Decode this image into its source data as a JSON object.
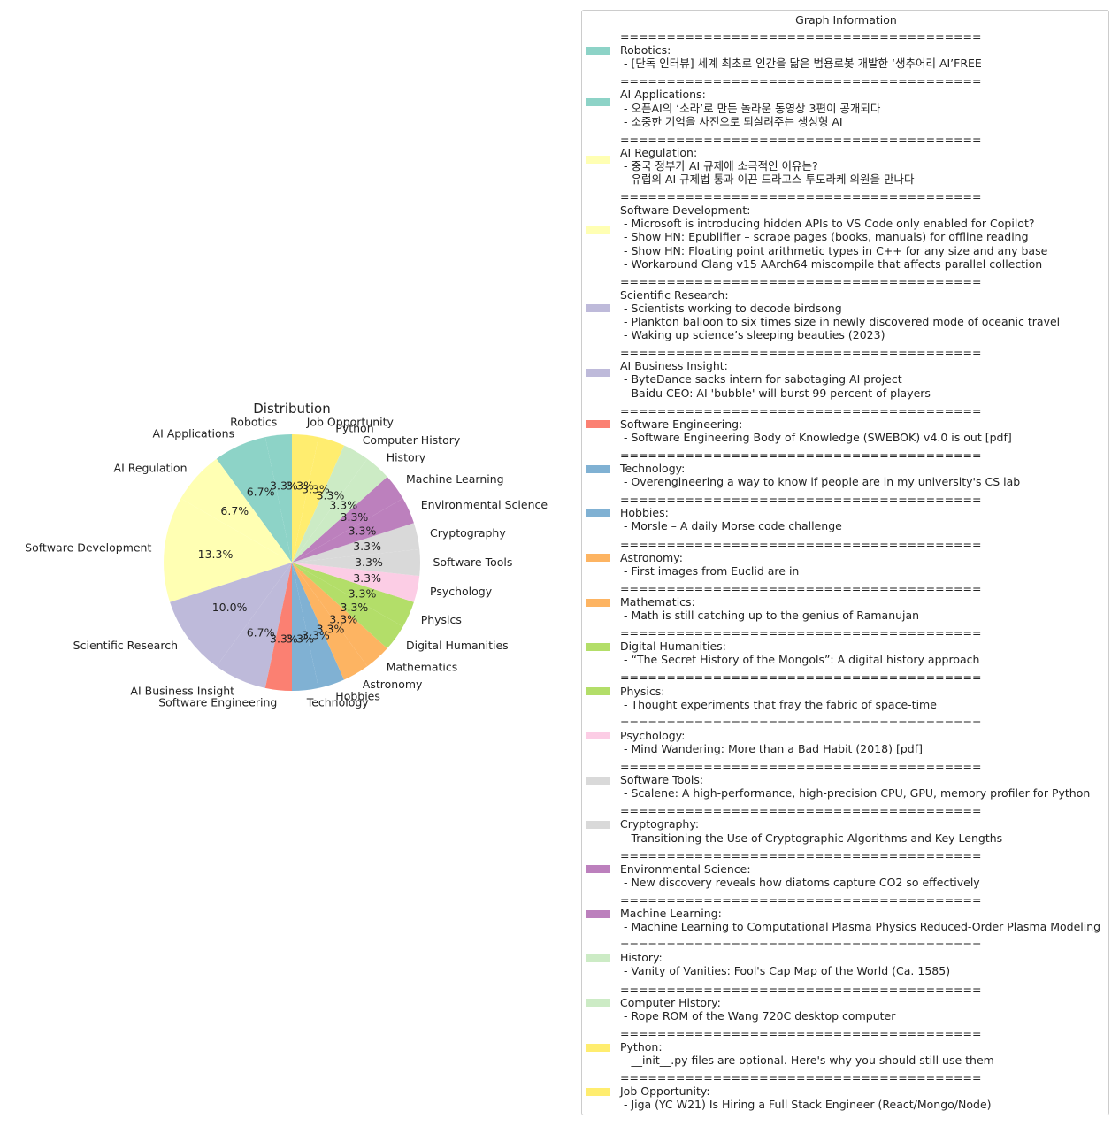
{
  "chart_data": {
    "type": "pie",
    "title": "Distribution",
    "categories": [
      "Robotics",
      "AI Applications",
      "AI Regulation",
      "Software Development",
      "Scientific Research",
      "AI Business Insight",
      "Software Engineering",
      "Technology",
      "Hobbies",
      "Astronomy",
      "Mathematics",
      "Digital Humanities",
      "Physics",
      "Psychology",
      "Software Tools",
      "Cryptography",
      "Environmental Science",
      "Machine Learning",
      "History",
      "Computer History",
      "Python",
      "Job Opportunity"
    ],
    "values": [
      1,
      2,
      2,
      4,
      3,
      2,
      1,
      1,
      1,
      1,
      1,
      1,
      1,
      1,
      1,
      1,
      1,
      1,
      1,
      1,
      1,
      1
    ],
    "percent_labels": [
      "3.3%",
      "6.7%",
      "6.7%",
      "13.3%",
      "10.0%",
      "6.7%",
      "3.3%",
      "3.3%",
      "3.3%",
      "3.3%",
      "3.3%",
      "3.3%",
      "3.3%",
      "3.3%",
      "3.3%",
      "3.3%",
      "3.3%",
      "3.3%",
      "3.3%",
      "3.3%",
      "3.3%",
      "3.3%"
    ],
    "colors": [
      "#8dd3c7",
      "#8dd3c7",
      "#ffffb3",
      "#ffffb3",
      "#bebada",
      "#bebada",
      "#fb8072",
      "#80b1d3",
      "#80b1d3",
      "#fdb462",
      "#fdb462",
      "#b3de69",
      "#b3de69",
      "#fccde5",
      "#d9d9d9",
      "#d9d9d9",
      "#bc80bd",
      "#bc80bd",
      "#ccebc5",
      "#ccebc5",
      "#ffed6f",
      "#ffed6f"
    ],
    "start_angle_deg": 90,
    "direction": "counterclockwise"
  },
  "legend": {
    "title": "Graph Information",
    "separator": "=======================================",
    "entries": [
      {
        "category": "Robotics:",
        "color": "#8dd3c7",
        "items": [
          "[단독 인터뷰] 세계 최초로 인간을 닮은 범용로봇 개발한 ‘생추어리 AI’FREE"
        ]
      },
      {
        "category": "AI Applications:",
        "color": "#8dd3c7",
        "items": [
          "오픈AI의 ‘소라’로 만든 놀라운 동영상 3편이 공개되다",
          "소중한 기억을 사진으로 되살려주는 생성형 AI"
        ]
      },
      {
        "category": "AI Regulation:",
        "color": "#ffffb3",
        "items": [
          "중국 정부가 AI 규제에 소극적인 이유는?",
          "유럽의 AI 규제법 통과 이끈 드라고스 투도라케 의원을 만나다"
        ]
      },
      {
        "category": "Software Development:",
        "color": "#ffffb3",
        "items": [
          "Microsoft is introducing hidden APIs to VS Code only enabled for Copilot?",
          "Show HN: Epublifier – scrape pages (books, manuals) for offline reading",
          "Show HN: Floating point arithmetic types in C++ for any size and any base",
          "Workaround Clang v15 AArch64 miscompile that affects parallel collection"
        ]
      },
      {
        "category": "Scientific Research:",
        "color": "#bebada",
        "items": [
          "Scientists working to decode birdsong",
          "Plankton balloon to six times size in newly discovered mode of oceanic travel",
          "Waking up science’s sleeping beauties (2023)"
        ]
      },
      {
        "category": "AI Business Insight:",
        "color": "#bebada",
        "items": [
          "ByteDance sacks intern for sabotaging AI project",
          "Baidu CEO: AI 'bubble' will burst 99 percent of players"
        ]
      },
      {
        "category": "Software Engineering:",
        "color": "#fb8072",
        "items": [
          "Software Engineering Body of Knowledge (SWEBOK) v4.0 is out [pdf]"
        ]
      },
      {
        "category": "Technology:",
        "color": "#80b1d3",
        "items": [
          "Overengineering a way to know if people are in my university's CS lab"
        ]
      },
      {
        "category": "Hobbies:",
        "color": "#80b1d3",
        "items": [
          "Morsle – A daily Morse code challenge"
        ]
      },
      {
        "category": "Astronomy:",
        "color": "#fdb462",
        "items": [
          "First images from Euclid are in"
        ]
      },
      {
        "category": "Mathematics:",
        "color": "#fdb462",
        "items": [
          "Math is still catching up to the genius of Ramanujan"
        ]
      },
      {
        "category": "Digital Humanities:",
        "color": "#b3de69",
        "items": [
          "“The Secret History of the Mongols”: A digital history approach"
        ]
      },
      {
        "category": "Physics:",
        "color": "#b3de69",
        "items": [
          "Thought experiments that fray the fabric of space-time"
        ]
      },
      {
        "category": "Psychology:",
        "color": "#fccde5",
        "items": [
          "Mind Wandering: More than a Bad Habit (2018) [pdf]"
        ]
      },
      {
        "category": "Software Tools:",
        "color": "#d9d9d9",
        "items": [
          "Scalene: A high-performance, high-precision CPU, GPU, memory profiler for Python"
        ]
      },
      {
        "category": "Cryptography:",
        "color": "#d9d9d9",
        "items": [
          "Transitioning the Use of Cryptographic Algorithms and Key Lengths"
        ]
      },
      {
        "category": "Environmental Science:",
        "color": "#bc80bd",
        "items": [
          "New discovery reveals how diatoms capture CO2 so effectively"
        ]
      },
      {
        "category": "Machine Learning:",
        "color": "#bc80bd",
        "items": [
          "Machine Learning to Computational Plasma Physics Reduced-Order Plasma Modeling"
        ]
      },
      {
        "category": "History:",
        "color": "#ccebc5",
        "items": [
          "Vanity of Vanities: Fool's Cap Map of the World (Ca. 1585)"
        ]
      },
      {
        "category": "Computer History:",
        "color": "#ccebc5",
        "items": [
          "Rope ROM of the Wang 720C desktop computer"
        ]
      },
      {
        "category": "Python:",
        "color": "#ffed6f",
        "items": [
          "__init__.py files are optional. Here's why you should still use them"
        ]
      },
      {
        "category": "Job Opportunity:",
        "color": "#ffed6f",
        "items": [
          "Jiga (YC W21) Is Hiring a Full Stack Engineer (React/Mongo/Node)"
        ]
      }
    ]
  }
}
